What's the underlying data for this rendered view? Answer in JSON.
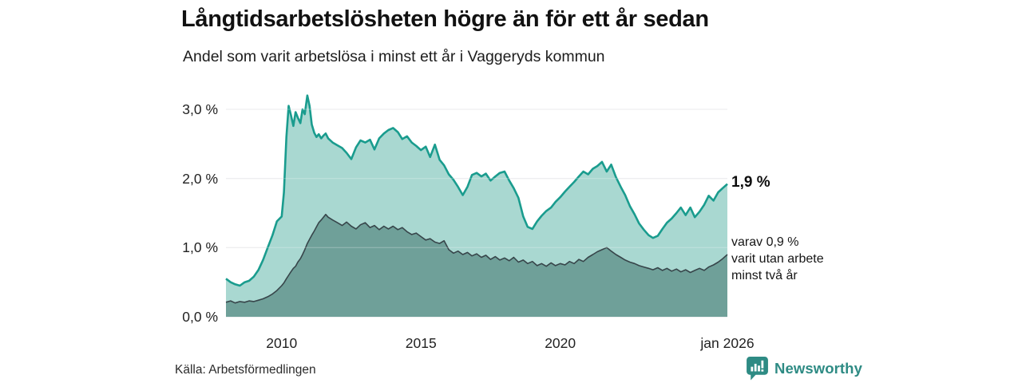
{
  "chart_data": {
    "type": "area",
    "title": "Långtidsarbetslösheten högre än för ett år sedan",
    "subtitle": "Andel som varit arbetslösa i minst ett år i Vaggeryds kommun",
    "x_axis": {
      "range": [
        2008,
        2026
      ],
      "ticks": [
        {
          "year": 2010,
          "label": "2010"
        },
        {
          "year": 2015,
          "label": "2015"
        },
        {
          "year": 2020,
          "label": "2020"
        },
        {
          "year": 2026,
          "label": "jan 2026"
        }
      ]
    },
    "y_axis": {
      "range": [
        0,
        3.3
      ],
      "unit": "%",
      "ticks": [
        {
          "value": 3,
          "label": "3,0 %"
        },
        {
          "value": 2,
          "label": "2,0 %"
        },
        {
          "value": 1,
          "label": "1,0 %"
        },
        {
          "value": 0,
          "label": "0,0 %"
        }
      ],
      "grid": true
    },
    "legend_position": "right-annotations",
    "series": [
      {
        "name": "Arbetslösa minst ett år",
        "line_color": "#1a9c8e",
        "fill_color": "#a9d8d1",
        "latest_value": 1.9
      },
      {
        "name": "Utan arbete minst två år",
        "line_color": "#37454a",
        "fill_color": "#6fa099",
        "latest_value": 0.9
      }
    ],
    "points_format": [
      "year",
      "andel_minst_ett_ar_pct",
      "andel_minst_tva_ar_pct"
    ],
    "points": [
      [
        2008.0,
        0.55,
        0.21
      ],
      [
        2008.17,
        0.5,
        0.23
      ],
      [
        2008.33,
        0.47,
        0.2
      ],
      [
        2008.5,
        0.45,
        0.22
      ],
      [
        2008.67,
        0.5,
        0.21
      ],
      [
        2008.83,
        0.52,
        0.23
      ],
      [
        2009.0,
        0.58,
        0.22
      ],
      [
        2009.17,
        0.68,
        0.24
      ],
      [
        2009.33,
        0.82,
        0.26
      ],
      [
        2009.5,
        1.0,
        0.29
      ],
      [
        2009.67,
        1.18,
        0.33
      ],
      [
        2009.83,
        1.38,
        0.38
      ],
      [
        2010.0,
        1.45,
        0.45
      ],
      [
        2010.08,
        1.8,
        0.49
      ],
      [
        2010.17,
        2.6,
        0.55
      ],
      [
        2010.25,
        3.05,
        0.6
      ],
      [
        2010.33,
        2.92,
        0.65
      ],
      [
        2010.42,
        2.76,
        0.7
      ],
      [
        2010.5,
        2.96,
        0.73
      ],
      [
        2010.58,
        2.88,
        0.79
      ],
      [
        2010.67,
        2.8,
        0.84
      ],
      [
        2010.75,
        3.0,
        0.9
      ],
      [
        2010.83,
        2.93,
        0.97
      ],
      [
        2010.92,
        3.2,
        1.06
      ],
      [
        2011.0,
        3.05,
        1.12
      ],
      [
        2011.08,
        2.78,
        1.18
      ],
      [
        2011.17,
        2.66,
        1.24
      ],
      [
        2011.25,
        2.6,
        1.3
      ],
      [
        2011.33,
        2.64,
        1.36
      ],
      [
        2011.42,
        2.58,
        1.4
      ],
      [
        2011.5,
        2.62,
        1.44
      ],
      [
        2011.58,
        2.65,
        1.48
      ],
      [
        2011.67,
        2.58,
        1.44
      ],
      [
        2011.83,
        2.52,
        1.4
      ],
      [
        2012.0,
        2.48,
        1.36
      ],
      [
        2012.17,
        2.44,
        1.32
      ],
      [
        2012.33,
        2.37,
        1.37
      ],
      [
        2012.5,
        2.28,
        1.31
      ],
      [
        2012.67,
        2.45,
        1.27
      ],
      [
        2012.83,
        2.55,
        1.33
      ],
      [
        2013.0,
        2.52,
        1.36
      ],
      [
        2013.17,
        2.56,
        1.29
      ],
      [
        2013.33,
        2.42,
        1.32
      ],
      [
        2013.5,
        2.58,
        1.26
      ],
      [
        2013.67,
        2.65,
        1.31
      ],
      [
        2013.83,
        2.7,
        1.27
      ],
      [
        2014.0,
        2.73,
        1.31
      ],
      [
        2014.17,
        2.67,
        1.26
      ],
      [
        2014.33,
        2.57,
        1.29
      ],
      [
        2014.5,
        2.61,
        1.23
      ],
      [
        2014.67,
        2.52,
        1.19
      ],
      [
        2014.83,
        2.47,
        1.21
      ],
      [
        2015.0,
        2.41,
        1.16
      ],
      [
        2015.17,
        2.46,
        1.11
      ],
      [
        2015.33,
        2.31,
        1.13
      ],
      [
        2015.5,
        2.49,
        1.08
      ],
      [
        2015.67,
        2.27,
        1.06
      ],
      [
        2015.83,
        2.19,
        1.1
      ],
      [
        2016.0,
        2.06,
        0.97
      ],
      [
        2016.17,
        1.98,
        0.92
      ],
      [
        2016.33,
        1.88,
        0.95
      ],
      [
        2016.5,
        1.76,
        0.9
      ],
      [
        2016.67,
        1.88,
        0.93
      ],
      [
        2016.83,
        2.05,
        0.88
      ],
      [
        2017.0,
        2.08,
        0.91
      ],
      [
        2017.17,
        2.03,
        0.86
      ],
      [
        2017.33,
        2.07,
        0.89
      ],
      [
        2017.5,
        1.97,
        0.83
      ],
      [
        2017.67,
        2.03,
        0.87
      ],
      [
        2017.83,
        2.08,
        0.82
      ],
      [
        2018.0,
        2.1,
        0.85
      ],
      [
        2018.17,
        1.97,
        0.81
      ],
      [
        2018.33,
        1.86,
        0.86
      ],
      [
        2018.5,
        1.72,
        0.79
      ],
      [
        2018.67,
        1.45,
        0.82
      ],
      [
        2018.83,
        1.3,
        0.77
      ],
      [
        2019.0,
        1.27,
        0.8
      ],
      [
        2019.17,
        1.38,
        0.74
      ],
      [
        2019.33,
        1.46,
        0.77
      ],
      [
        2019.5,
        1.53,
        0.73
      ],
      [
        2019.67,
        1.58,
        0.78
      ],
      [
        2019.83,
        1.66,
        0.74
      ],
      [
        2020.0,
        1.73,
        0.77
      ],
      [
        2020.17,
        1.81,
        0.75
      ],
      [
        2020.33,
        1.88,
        0.8
      ],
      [
        2020.5,
        1.95,
        0.77
      ],
      [
        2020.67,
        2.03,
        0.83
      ],
      [
        2020.83,
        2.1,
        0.8
      ],
      [
        2021.0,
        2.06,
        0.86
      ],
      [
        2021.17,
        2.14,
        0.9
      ],
      [
        2021.33,
        2.18,
        0.94
      ],
      [
        2021.5,
        2.24,
        0.97
      ],
      [
        2021.67,
        2.1,
        1.0
      ],
      [
        2021.83,
        2.2,
        0.95
      ],
      [
        2022.0,
        2.02,
        0.9
      ],
      [
        2022.17,
        1.88,
        0.86
      ],
      [
        2022.33,
        1.76,
        0.82
      ],
      [
        2022.5,
        1.6,
        0.79
      ],
      [
        2022.67,
        1.48,
        0.77
      ],
      [
        2022.83,
        1.35,
        0.74
      ],
      [
        2023.0,
        1.26,
        0.72
      ],
      [
        2023.17,
        1.18,
        0.7
      ],
      [
        2023.33,
        1.14,
        0.68
      ],
      [
        2023.5,
        1.17,
        0.71
      ],
      [
        2023.67,
        1.27,
        0.67
      ],
      [
        2023.83,
        1.36,
        0.7
      ],
      [
        2024.0,
        1.42,
        0.66
      ],
      [
        2024.17,
        1.5,
        0.69
      ],
      [
        2024.33,
        1.58,
        0.65
      ],
      [
        2024.5,
        1.47,
        0.68
      ],
      [
        2024.67,
        1.58,
        0.64
      ],
      [
        2024.83,
        1.44,
        0.67
      ],
      [
        2025.0,
        1.52,
        0.7
      ],
      [
        2025.17,
        1.62,
        0.67
      ],
      [
        2025.33,
        1.75,
        0.72
      ],
      [
        2025.5,
        1.68,
        0.75
      ],
      [
        2025.67,
        1.8,
        0.79
      ],
      [
        2025.83,
        1.86,
        0.84
      ],
      [
        2026.0,
        1.92,
        0.9
      ]
    ],
    "annotations": {
      "latest_total_label": "1,9 %",
      "breakdown": [
        "varav 0,9 %",
        "varit utan arbete",
        "minst två år"
      ]
    },
    "colors": {
      "grid": "#e2e2e4",
      "accent_teal": "#1a9c8e",
      "dark_series": "#37454a",
      "brand_teal": "#2e8b84"
    }
  },
  "footer": {
    "source": "Källa: Arbetsförmedlingen",
    "brand_name": "Newsworthy"
  }
}
